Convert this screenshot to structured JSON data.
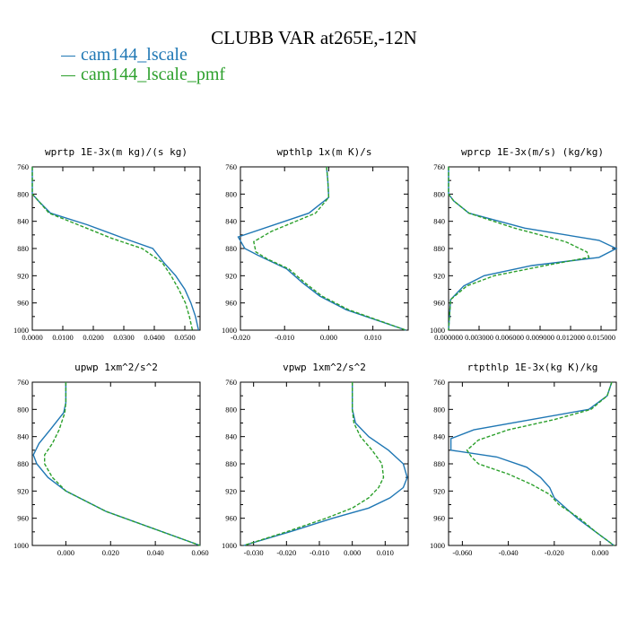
{
  "title": "CLUBB VAR at265E,-12N",
  "legend": [
    {
      "name": "cam144_lscale",
      "color": "#1f77b4",
      "dash": "solid"
    },
    {
      "name": "cam144_lscale_pmf",
      "color": "#2ca02c",
      "dash": "dashed"
    }
  ],
  "chart_data": [
    {
      "type": "line",
      "title": "wprtp  1E-3x(m kg)/(s kg)",
      "xlim": [
        0,
        0.055
      ],
      "ylim": [
        760,
        1000
      ],
      "xticks": [
        0,
        0.01,
        0.02,
        0.03,
        0.04,
        0.05
      ],
      "xtick_labels": [
        "0.0000",
        "0.0100",
        "0.0200",
        "0.0300",
        "0.0400",
        "0.0500"
      ],
      "yticks": [
        760,
        800,
        840,
        880,
        920,
        960,
        1000
      ],
      "series": [
        {
          "p": [
            760,
            800,
            810,
            828,
            845,
            865,
            880,
            900,
            920,
            940,
            960,
            980,
            1000
          ],
          "x": [
            0.0,
            0.0,
            0.002,
            0.006,
            0.018,
            0.03,
            0.0395,
            0.043,
            0.047,
            0.05,
            0.052,
            0.0535,
            0.0545
          ]
        },
        {
          "p": [
            760,
            800,
            810,
            828,
            845,
            865,
            880,
            900,
            920,
            940,
            960,
            980,
            1000
          ],
          "x": [
            0.0,
            0.0,
            0.002,
            0.0055,
            0.015,
            0.026,
            0.036,
            0.0425,
            0.0455,
            0.048,
            0.0502,
            0.0515,
            0.0525
          ]
        }
      ]
    },
    {
      "type": "line",
      "title": "wpthlp  1x(m K)/s",
      "xlim": [
        -0.02,
        0.018
      ],
      "ylim": [
        760,
        1000
      ],
      "xticks": [
        -0.02,
        -0.01,
        0.0,
        0.01
      ],
      "xtick_labels": [
        "-0.020",
        "-0.010",
        "0.000",
        "0.010"
      ],
      "yticks": [
        760,
        800,
        840,
        880,
        920,
        960,
        1000
      ],
      "series": [
        {
          "p": [
            760,
            780,
            805,
            828,
            863,
            880,
            890,
            910,
            930,
            950,
            970,
            1000
          ],
          "x": [
            -0.0005,
            -0.0002,
            0.0,
            -0.0045,
            -0.0205,
            -0.019,
            -0.016,
            -0.0095,
            -0.006,
            -0.002,
            0.004,
            0.0175
          ]
        },
        {
          "p": [
            760,
            780,
            805,
            828,
            855,
            870,
            885,
            895,
            910,
            930,
            950,
            970,
            1000
          ],
          "x": [
            -0.0005,
            -0.0002,
            0.0,
            -0.003,
            -0.013,
            -0.017,
            -0.0165,
            -0.014,
            -0.009,
            -0.0055,
            -0.0015,
            0.0045,
            0.0175
          ]
        }
      ]
    },
    {
      "type": "line",
      "title": "wprcp  1E-3x(m/s) (kg/kg)",
      "xlim": [
        0,
        0.0165
      ],
      "ylim": [
        760,
        1000
      ],
      "xticks": [
        0,
        0.003,
        0.006,
        0.009,
        0.012,
        0.015
      ],
      "xtick_labels": [
        "0.000000",
        "0.003000",
        "0.006000",
        "0.009000",
        "0.012000",
        "0.015000"
      ],
      "yticks": [
        760,
        800,
        840,
        880,
        920,
        960,
        1000
      ],
      "series": [
        {
          "p": [
            760,
            800,
            810,
            828,
            850,
            868,
            880,
            893,
            905,
            920,
            935,
            955,
            1000
          ],
          "x": [
            0.0,
            0.0,
            0.0005,
            0.002,
            0.0075,
            0.0148,
            0.0165,
            0.0148,
            0.0082,
            0.0035,
            0.0015,
            0.0002,
            0.0
          ]
        },
        {
          "p": [
            760,
            800,
            810,
            828,
            850,
            870,
            885,
            893,
            905,
            920,
            935,
            955,
            1000
          ],
          "x": [
            0.0,
            0.0,
            0.0005,
            0.002,
            0.0065,
            0.0115,
            0.0136,
            0.0138,
            0.0095,
            0.0045,
            0.0018,
            0.0002,
            0.0
          ]
        }
      ]
    },
    {
      "type": "line",
      "title": "upwp  1xm^2/s^2",
      "xlim": [
        -0.015,
        0.06
      ],
      "ylim": [
        760,
        1000
      ],
      "xticks": [
        0.0,
        0.02,
        0.04,
        0.06
      ],
      "xtick_labels": [
        "0.000",
        "0.020",
        "0.040",
        "0.060"
      ],
      "yticks": [
        760,
        800,
        840,
        880,
        920,
        960,
        1000
      ],
      "series": [
        {
          "p": [
            760,
            790,
            805,
            830,
            850,
            867,
            880,
            900,
            920,
            950,
            1000
          ],
          "x": [
            0.0,
            0.0,
            -0.001,
            -0.007,
            -0.012,
            -0.0145,
            -0.013,
            -0.008,
            0.0,
            0.018,
            0.06
          ]
        },
        {
          "p": [
            760,
            790,
            805,
            830,
            850,
            867,
            880,
            900,
            920,
            950,
            1000
          ],
          "x": [
            0.0,
            0.0,
            -0.0005,
            -0.003,
            -0.006,
            -0.0095,
            -0.0095,
            -0.006,
            0.0,
            0.018,
            0.06
          ]
        }
      ]
    },
    {
      "type": "line",
      "title": "vpwp  1xm^2/s^2",
      "xlim": [
        -0.034,
        0.017
      ],
      "ylim": [
        760,
        1000
      ],
      "xticks": [
        -0.03,
        -0.02,
        -0.01,
        0.0,
        0.01
      ],
      "xtick_labels": [
        "-0.030",
        "-0.020",
        "-0.010",
        "0.000",
        "0.010"
      ],
      "yticks": [
        760,
        800,
        840,
        880,
        920,
        960,
        1000
      ],
      "series": [
        {
          "p": [
            760,
            800,
            820,
            840,
            860,
            880,
            900,
            915,
            930,
            945,
            960,
            980,
            1000
          ],
          "x": [
            0.0,
            0.0,
            0.001,
            0.005,
            0.011,
            0.0155,
            0.0167,
            0.0155,
            0.0115,
            0.005,
            -0.006,
            -0.019,
            -0.033
          ]
        },
        {
          "p": [
            760,
            800,
            820,
            840,
            860,
            880,
            900,
            915,
            930,
            945,
            960,
            980,
            1000
          ],
          "x": [
            0.0,
            0.0,
            0.0005,
            0.0025,
            0.006,
            0.009,
            0.0095,
            0.008,
            0.005,
            0.0,
            -0.008,
            -0.02,
            -0.033
          ]
        }
      ]
    },
    {
      "type": "line",
      "title": "rtpthlp  1E-3x(kg K)/kg",
      "xlim": [
        -0.066,
        0.007
      ],
      "ylim": [
        760,
        1000
      ],
      "xticks": [
        -0.06,
        -0.04,
        -0.02,
        0.0
      ],
      "xtick_labels": [
        "-0.060",
        "-0.040",
        "-0.020",
        "0.000"
      ],
      "yticks": [
        760,
        800,
        840,
        880,
        920,
        960,
        1000
      ],
      "series": [
        {
          "p": [
            760,
            780,
            800,
            815,
            830,
            843,
            850,
            860,
            870,
            885,
            900,
            915,
            930,
            960,
            980,
            1000
          ],
          "x": [
            0.005,
            0.003,
            -0.005,
            -0.03,
            -0.055,
            -0.065,
            -0.065,
            -0.065,
            -0.045,
            -0.032,
            -0.026,
            -0.022,
            -0.02,
            -0.01,
            -0.002,
            0.006
          ]
        },
        {
          "p": [
            760,
            780,
            800,
            815,
            830,
            845,
            860,
            870,
            880,
            895,
            910,
            925,
            940,
            960,
            980,
            1000
          ],
          "x": [
            0.005,
            0.003,
            -0.004,
            -0.02,
            -0.04,
            -0.053,
            -0.058,
            -0.056,
            -0.053,
            -0.04,
            -0.03,
            -0.022,
            -0.018,
            -0.009,
            -0.002,
            0.006
          ]
        }
      ]
    }
  ]
}
